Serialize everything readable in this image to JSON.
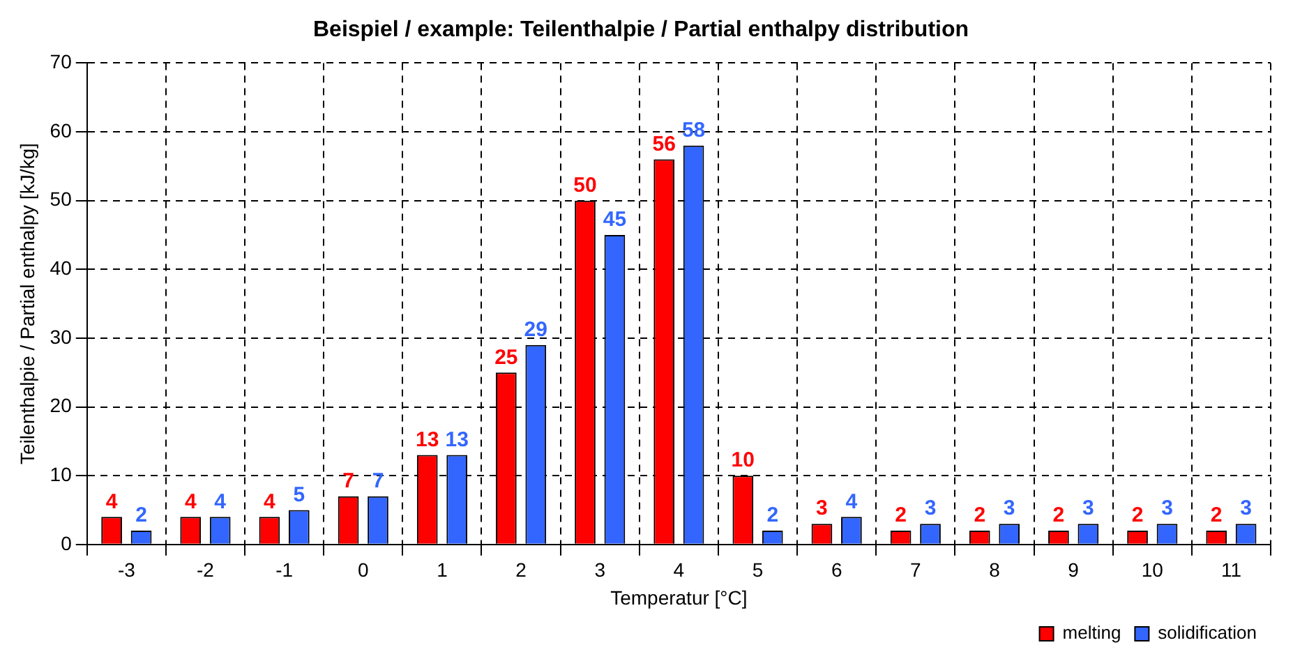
{
  "chart_data": {
    "type": "bar",
    "title": "Beispiel / example: Teilenthalpie / Partial enthalpy distribution",
    "xlabel": "Temperatur [°C]",
    "ylabel": "Teilenthalpie / Partial enthalpy [kJ/kg]",
    "categories": [
      "-3",
      "-2",
      "-1",
      "0",
      "1",
      "2",
      "3",
      "4",
      "5",
      "6",
      "7",
      "8",
      "9",
      "10",
      "11"
    ],
    "series": [
      {
        "name": "melting",
        "color": "#ff0000",
        "values": [
          4,
          4,
          4,
          7,
          13,
          25,
          50,
          56,
          10,
          3,
          2,
          2,
          2,
          2,
          2
        ]
      },
      {
        "name": "solidification",
        "color": "#3366ff",
        "values": [
          2,
          4,
          5,
          7,
          13,
          29,
          45,
          58,
          2,
          4,
          3,
          3,
          3,
          3,
          3
        ]
      }
    ],
    "ylim": [
      0,
      70
    ],
    "yticks": [
      0,
      10,
      20,
      30,
      40,
      50,
      60,
      70
    ],
    "grid": true,
    "legend": "bottom right",
    "data_labels": true
  }
}
